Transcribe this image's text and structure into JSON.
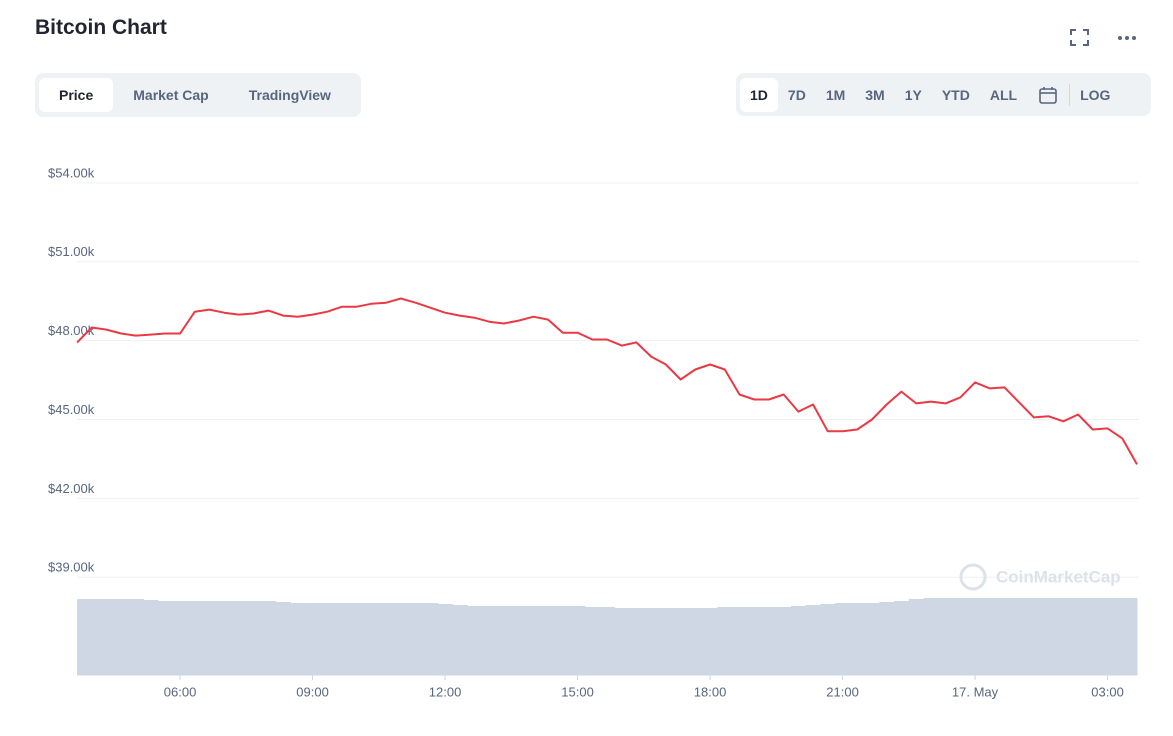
{
  "toolbar": {
    "tabs": [
      "Price",
      "Market Cap",
      "TradingView"
    ],
    "ranges": [
      "1D",
      "7D",
      "1M",
      "3M",
      "1Y",
      "YTD",
      "ALL"
    ],
    "log": "LOG"
  },
  "chart_data": {
    "type": "line",
    "title": "Bitcoin Chart",
    "watermark": "CoinMarketCap",
    "categories": [
      null,
      null,
      null,
      null,
      null,
      null,
      null,
      "06:00",
      null,
      null,
      null,
      null,
      null,
      null,
      null,
      null,
      "09:00",
      null,
      null,
      null,
      null,
      null,
      null,
      null,
      null,
      "12:00",
      null,
      null,
      null,
      null,
      null,
      null,
      null,
      null,
      "15:00",
      null,
      null,
      null,
      null,
      null,
      null,
      null,
      null,
      "18:00",
      null,
      null,
      null,
      null,
      null,
      null,
      null,
      null,
      "21:00",
      null,
      null,
      null,
      null,
      null,
      null,
      null,
      null,
      "17. May",
      null,
      null,
      null,
      null,
      null,
      null,
      null,
      null,
      "03:00",
      null,
      null
    ],
    "series": [
      {
        "name": "Price",
        "color": "#ea3943",
        "values": [
          47925,
          48500,
          48420,
          48270,
          48190,
          48230,
          48270,
          48270,
          49100,
          49180,
          49060,
          48990,
          49030,
          49140,
          48950,
          48910,
          48990,
          49100,
          49290,
          49290,
          49400,
          49440,
          49600,
          49440,
          49250,
          49060,
          48950,
          48870,
          48720,
          48650,
          48760,
          48910,
          48800,
          48300,
          48300,
          48040,
          48040,
          47810,
          47930,
          47390,
          47090,
          46520,
          46900,
          47090,
          46900,
          45950,
          45760,
          45760,
          45950,
          45300,
          45570,
          44550,
          44550,
          44620,
          45000,
          45570,
          46060,
          45610,
          45680,
          45610,
          45840,
          46410,
          46180,
          46220,
          45650,
          45080,
          45120,
          44930,
          45190,
          44620,
          44660,
          44280,
          43290
        ]
      },
      {
        "name": "Volume",
        "color": "#cfd6e4",
        "axis": "y2",
        "values": [
          76,
          76,
          76,
          76,
          76,
          75,
          74,
          74,
          74,
          74,
          74,
          74,
          74,
          74,
          73,
          72,
          72,
          72,
          72,
          72,
          72,
          72,
          72,
          72,
          72,
          71,
          70,
          69,
          69,
          69,
          69,
          69,
          69,
          69,
          69,
          68,
          68,
          67,
          67,
          67,
          67,
          67,
          67,
          67,
          68,
          68,
          68,
          68,
          68,
          69,
          70,
          71,
          72,
          72,
          72,
          73,
          74,
          76,
          77,
          77,
          77,
          77,
          77,
          77,
          77,
          77,
          77,
          77,
          77,
          77,
          77,
          77,
          77
        ]
      }
    ],
    "ylim": [
      35280,
      55250
    ],
    "yticks": [
      {
        "value": 39000,
        "label": "$39.00k"
      },
      {
        "value": 42000,
        "label": "$42.00k"
      },
      {
        "value": 45000,
        "label": "$45.00k"
      },
      {
        "value": 48000,
        "label": "$48.00k"
      },
      {
        "value": 51000,
        "label": "$51.00k"
      },
      {
        "value": 54000,
        "label": "$54.00k"
      }
    ],
    "y2lim": [
      0,
      100
    ],
    "grid": true
  }
}
